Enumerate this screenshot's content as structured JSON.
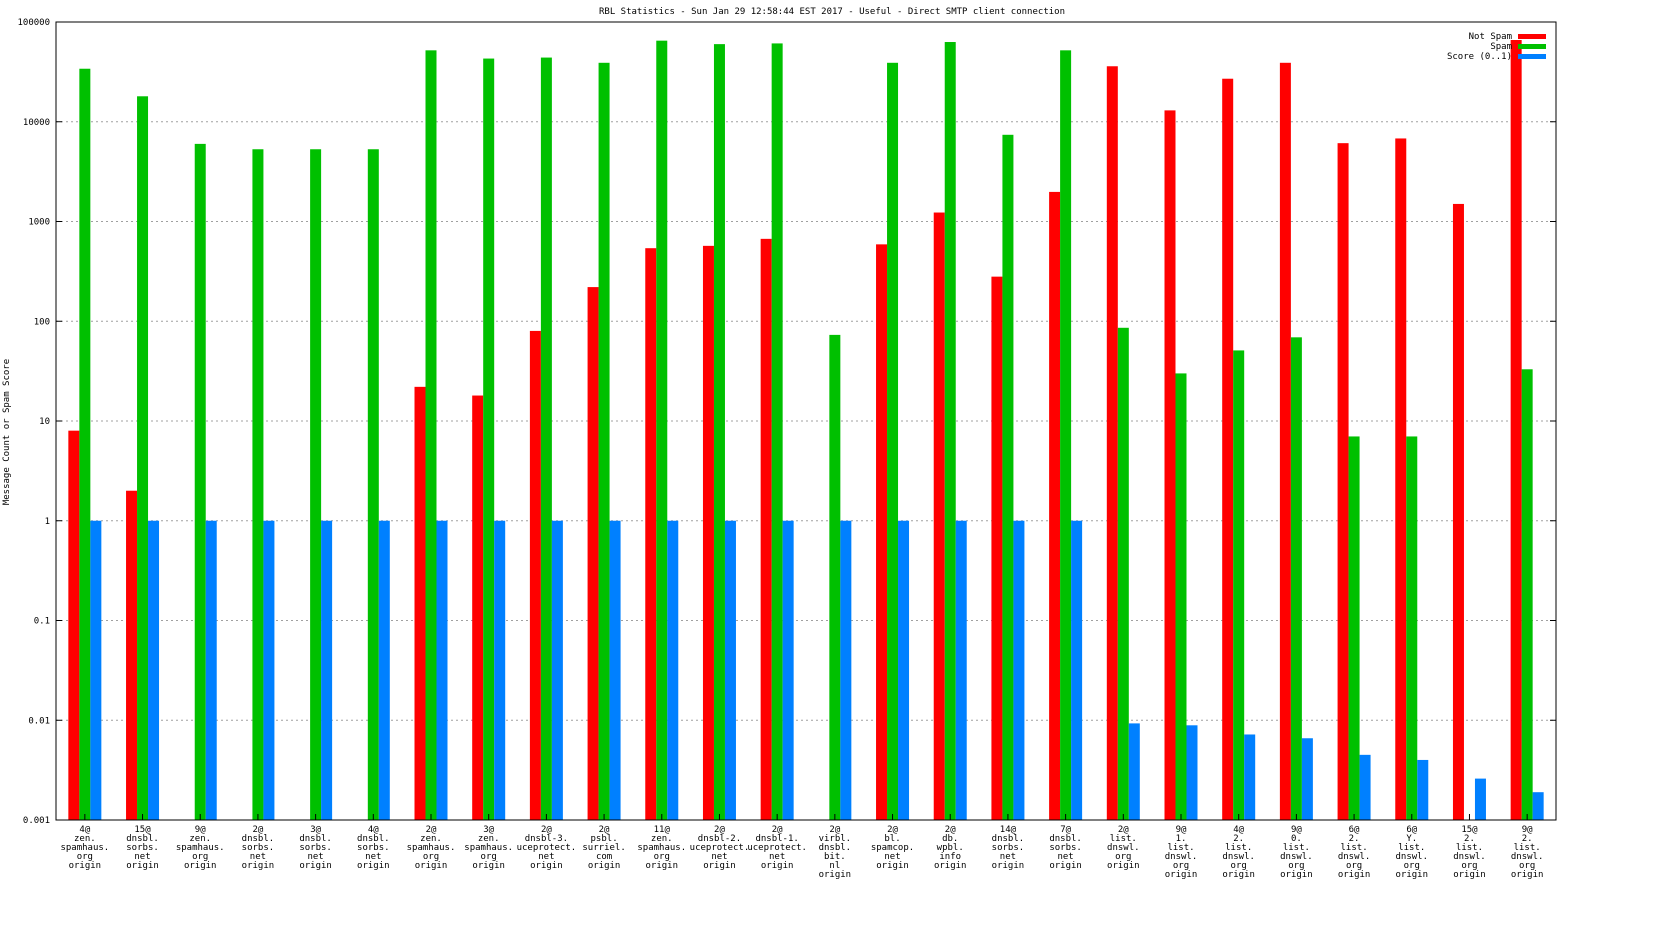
{
  "colors": {
    "not_spam": "#ff0000",
    "spam": "#00c000",
    "score": "#0080ff",
    "grid": "#a0a0a0",
    "axis": "#000000"
  },
  "chart_data": {
    "type": "bar",
    "title": "RBL Statistics - Sun Jan 29 12:58:44 EST 2017 - Useful - Direct SMTP client connection",
    "xlabel": "",
    "ylabel": "Message Count or Spam Score",
    "yscale": "log",
    "ylim": [
      0.001,
      100000
    ],
    "yticks": [
      "0.001",
      "0.01",
      "0.1",
      "1",
      "10",
      "100",
      "1000",
      "10000",
      "100000"
    ],
    "grid": true,
    "legend_position": "top-right",
    "categories": [
      [
        "4@",
        "zen.",
        "spamhaus.",
        "org",
        "origin"
      ],
      [
        "15@",
        "dnsbl.",
        "sorbs.",
        "net",
        "origin"
      ],
      [
        "9@",
        "zen.",
        "spamhaus.",
        "org",
        "origin"
      ],
      [
        "2@",
        "dnsbl.",
        "sorbs.",
        "net",
        "origin"
      ],
      [
        "3@",
        "dnsbl.",
        "sorbs.",
        "net",
        "origin"
      ],
      [
        "4@",
        "dnsbl.",
        "sorbs.",
        "net",
        "origin"
      ],
      [
        "2@",
        "zen.",
        "spamhaus.",
        "org",
        "origin"
      ],
      [
        "3@",
        "zen.",
        "spamhaus.",
        "org",
        "origin"
      ],
      [
        "2@",
        "dnsbl-3.",
        "uceprotect.",
        "net",
        "origin"
      ],
      [
        "2@",
        "psbl.",
        "surriel.",
        "com",
        "origin"
      ],
      [
        "11@",
        "zen.",
        "spamhaus.",
        "org",
        "origin"
      ],
      [
        "2@",
        "dnsbl-2.",
        "uceprotect.",
        "net",
        "origin"
      ],
      [
        "2@",
        "dnsbl-1.",
        "uceprotect.",
        "net",
        "origin"
      ],
      [
        "2@",
        "virbl.",
        "dnsbl.",
        "bit.",
        "nl",
        "origin"
      ],
      [
        "2@",
        "bl.",
        "spamcop.",
        "net",
        "origin"
      ],
      [
        "2@",
        "db.",
        "wpbl.",
        "info",
        "origin"
      ],
      [
        "14@",
        "dnsbl.",
        "sorbs.",
        "net",
        "origin"
      ],
      [
        "7@",
        "dnsbl.",
        "sorbs.",
        "net",
        "origin"
      ],
      [
        "2@",
        "list.",
        "dnswl.",
        "org",
        "origin"
      ],
      [
        "9@",
        "1.",
        "list.",
        "dnswl.",
        "org",
        "origin"
      ],
      [
        "4@",
        "2.",
        "list.",
        "dnswl.",
        "org",
        "origin"
      ],
      [
        "9@",
        "0.",
        "list.",
        "dnswl.",
        "org",
        "origin"
      ],
      [
        "6@",
        "2.",
        "list.",
        "dnswl.",
        "org",
        "origin"
      ],
      [
        "6@",
        "Y.",
        "list.",
        "dnswl.",
        "org",
        "origin"
      ],
      [
        "15@",
        "2.",
        "list.",
        "dnswl.",
        "org",
        "origin"
      ],
      [
        "9@",
        "2.",
        "list.",
        "dnswl.",
        "org",
        "origin"
      ]
    ],
    "series": [
      {
        "name": "Not Spam",
        "color": "#ff0000",
        "values": [
          8,
          2,
          null,
          null,
          null,
          null,
          22,
          18,
          80,
          220,
          540,
          570,
          670,
          null,
          590,
          1230,
          280,
          1980,
          36000,
          13000,
          27000,
          39000,
          6100,
          6800,
          1500,
          66000
        ]
      },
      {
        "name": "Spam",
        "color": "#00c000",
        "values": [
          34000,
          18000,
          6000,
          5300,
          5300,
          5300,
          52000,
          43000,
          44000,
          39000,
          65000,
          60000,
          61000,
          73,
          39000,
          63000,
          7400,
          52000,
          86,
          30,
          51,
          69,
          7,
          7,
          null,
          33
        ]
      },
      {
        "name": "Score (0..1)",
        "color": "#0080ff",
        "values": [
          1,
          1,
          1,
          1,
          1,
          1,
          1,
          1,
          1,
          1,
          1,
          1,
          1,
          1,
          1,
          1,
          1,
          1,
          0.0093,
          0.0089,
          0.0072,
          0.0066,
          0.0045,
          0.004,
          0.0026,
          0.0019
        ]
      }
    ]
  }
}
